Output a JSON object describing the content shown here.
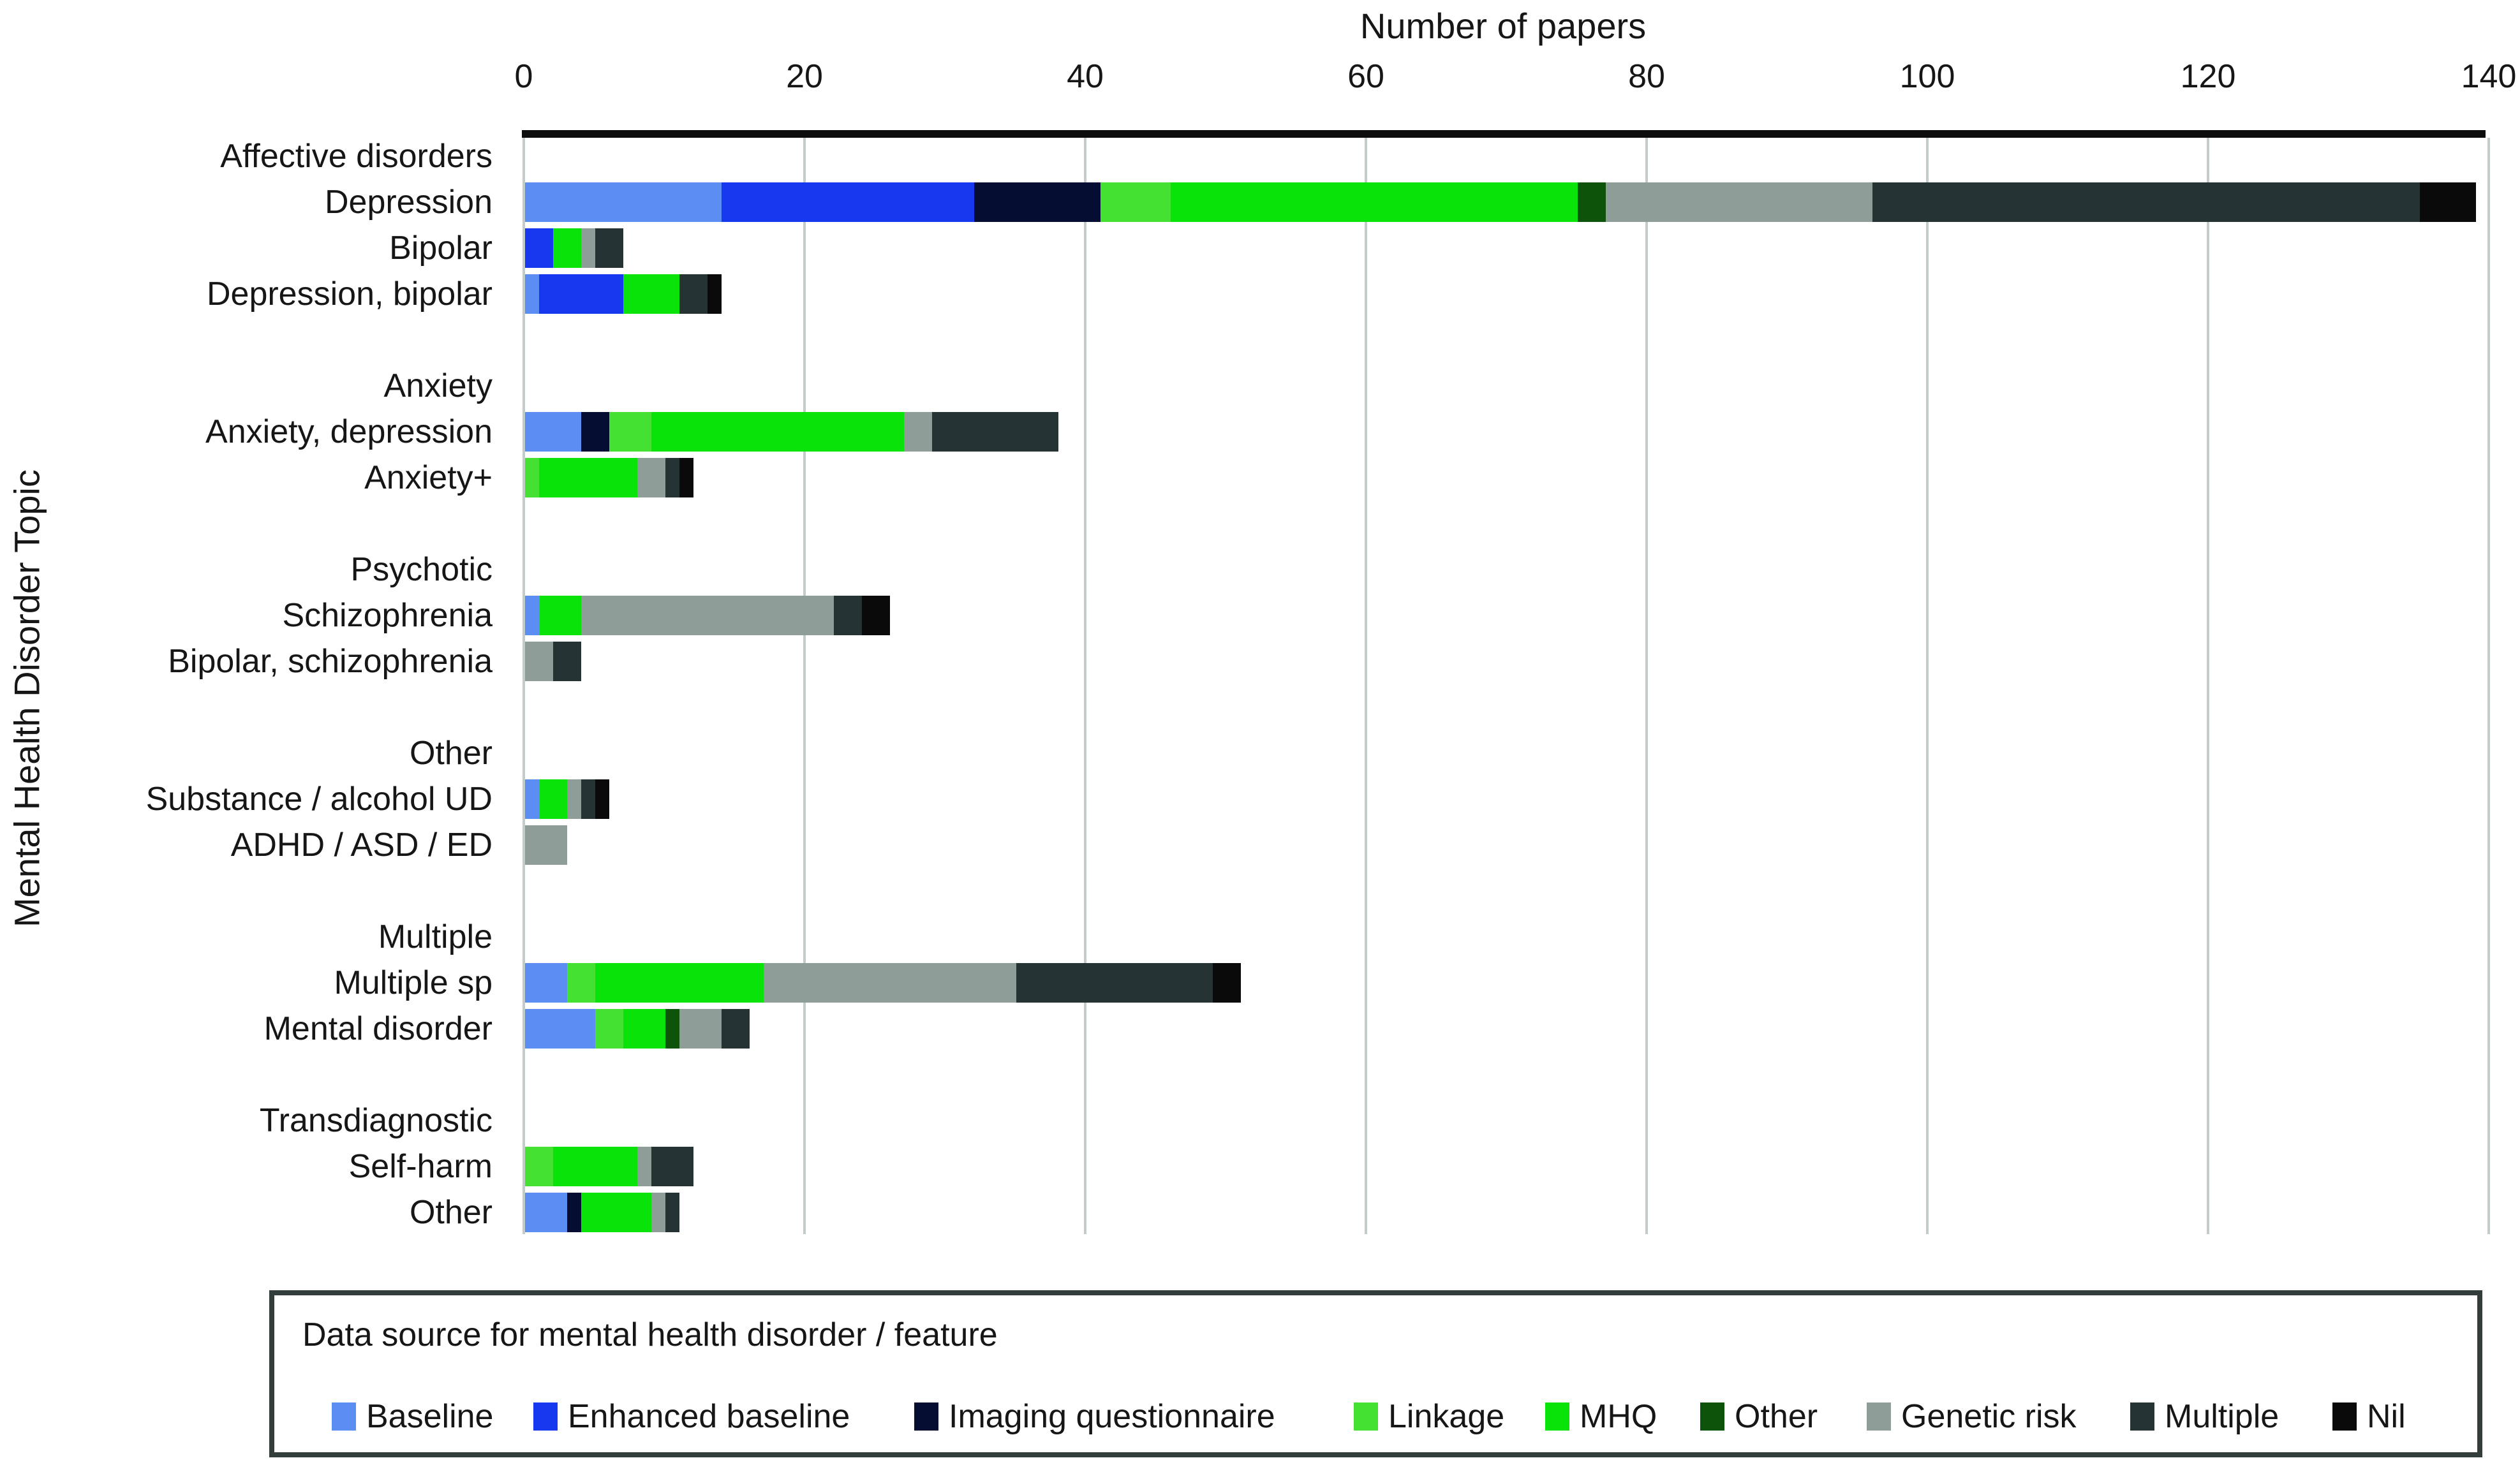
{
  "chart_data": {
    "type": "bar",
    "orientation": "horizontal",
    "stacked": true,
    "xlabel": "Number of papers",
    "ylabel": "Mental Health Disorder Topic",
    "xlim": [
      0,
      140
    ],
    "xticks": [
      0,
      20,
      40,
      60,
      80,
      100,
      120,
      140
    ],
    "grid": "vertical",
    "gridline_color": "#c4cccb",
    "axis_line_color": "#0d0d0d",
    "series_names": [
      "Baseline",
      "Enhanced baseline",
      "Imaging questionnaire",
      "Linkage",
      "MHQ",
      "Other",
      "Genetic risk",
      "Multiple",
      "Nil"
    ],
    "series_colors": [
      "#5b8df2",
      "#1639f0",
      "#060d33",
      "#44e032",
      "#09e309",
      "#0d530a",
      "#8f9d99",
      "#263334",
      "#0a0a0a"
    ],
    "rows": [
      {
        "label": "Affective disorders",
        "header": true
      },
      {
        "label": "Depression",
        "values": [
          14,
          18,
          9,
          5,
          29,
          2,
          19,
          39,
          4
        ]
      },
      {
        "label": "Bipolar",
        "values": [
          0,
          2,
          0,
          0,
          2,
          0,
          1,
          2,
          0
        ]
      },
      {
        "label": "Depression, bipolar",
        "values": [
          1,
          6,
          0,
          0,
          4,
          0,
          0,
          2,
          1
        ]
      },
      {
        "label": "",
        "spacer": true
      },
      {
        "label": "Anxiety",
        "header": true
      },
      {
        "label": "Anxiety, depression",
        "values": [
          4,
          0,
          2,
          3,
          18,
          0,
          2,
          9,
          0
        ]
      },
      {
        "label": "Anxiety+",
        "values": [
          0,
          0,
          0,
          1,
          7,
          0,
          2,
          1,
          1
        ]
      },
      {
        "label": "",
        "spacer": true
      },
      {
        "label": "Psychotic",
        "header": true
      },
      {
        "label": "Schizophrenia",
        "values": [
          1,
          0,
          0,
          0,
          3,
          0,
          18,
          2,
          2
        ]
      },
      {
        "label": "Bipolar, schizophrenia",
        "values": [
          0,
          0,
          0,
          0,
          0,
          0,
          2,
          2,
          0
        ]
      },
      {
        "label": "",
        "spacer": true
      },
      {
        "label": "Other",
        "header": true
      },
      {
        "label": "Substance / alcohol UD",
        "values": [
          1,
          0,
          0,
          0,
          2,
          0,
          1,
          1,
          1
        ]
      },
      {
        "label": "ADHD / ASD / ED",
        "values": [
          0,
          0,
          0,
          0,
          0,
          0,
          3,
          0,
          0
        ]
      },
      {
        "label": "",
        "spacer": true
      },
      {
        "label": "Multiple",
        "header": true
      },
      {
        "label": "Multiple sp",
        "values": [
          3,
          0,
          0,
          2,
          12,
          0,
          18,
          14,
          2
        ]
      },
      {
        "label": "Mental disorder",
        "values": [
          5,
          0,
          0,
          2,
          3,
          1,
          3,
          2,
          0
        ]
      },
      {
        "label": "",
        "spacer": true
      },
      {
        "label": "Transdiagnostic",
        "header": true
      },
      {
        "label": "Self-harm",
        "values": [
          0,
          0,
          0,
          2,
          6,
          0,
          1,
          3,
          0
        ]
      },
      {
        "label": "Other",
        "values": [
          3,
          0,
          1,
          0,
          5,
          0,
          1,
          1,
          0
        ]
      }
    ]
  },
  "legend": {
    "title": "Data source for mental health disorder / feature"
  }
}
